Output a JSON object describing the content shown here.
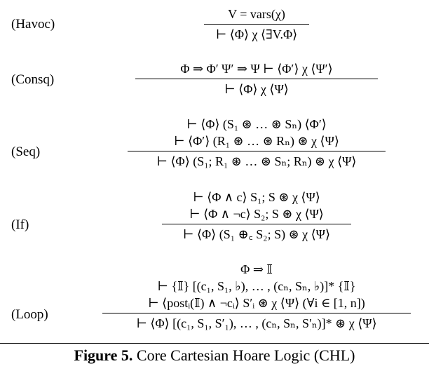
{
  "rules": [
    {
      "name": "(Havoc)",
      "premises": [
        "V = vars(χ)"
      ],
      "conclusion": "⊢ ⟨Φ⟩ χ ⟨∃V.Φ⟩"
    },
    {
      "name": "(Consq)",
      "premises": [
        "Φ ⇒ Φ′    Ψ′ ⇒ Ψ    ⊢ ⟨Φ′⟩ χ ⟨Ψ′⟩"
      ],
      "conclusion": "⊢ ⟨Φ⟩ χ ⟨Ψ⟩"
    },
    {
      "name": "(Seq)",
      "premises": [
        "⊢ ⟨Φ⟩ (S₁ ⊛ … ⊛ Sₙ) ⟨Φ′⟩",
        "⊢ ⟨Φ′⟩ (R₁ ⊛ … ⊛ Rₙ) ⊛ χ ⟨Ψ⟩"
      ],
      "conclusion": "⊢ ⟨Φ⟩ (S₁; R₁ ⊛ … ⊛ Sₙ; Rₙ) ⊛ χ ⟨Ψ⟩"
    },
    {
      "name": "(If)",
      "premises": [
        "⊢  ⟨Φ ∧ c⟩ S₁; S ⊛ χ ⟨Ψ⟩",
        "⊢  ⟨Φ ∧ ¬c⟩ S₂; S ⊛ χ ⟨Ψ⟩"
      ],
      "conclusion": "⊢  ⟨Φ⟩ (S₁ ⊕꜀ S₂; S) ⊛ χ ⟨Ψ⟩"
    },
    {
      "name": "(Loop)",
      "premises": [
        "Φ ⇒ 𝕀",
        "⊢ {𝕀} [(c₁, S₁, ♭), … , (cₙ, Sₙ, ♭)]* {𝕀}",
        "⊢  ⟨postᵢ(𝕀) ∧ ¬cᵢ⟩ S′ᵢ ⊛ χ ⟨Ψ⟩   (∀i ∈ [1, n])"
      ],
      "conclusion": "⊢  ⟨Φ⟩ [(c₁, S₁, S′₁), … , (cₙ, Sₙ, S′ₙ)]* ⊛ χ ⟨Ψ⟩"
    }
  ],
  "caption": {
    "label": "Figure 5.",
    "text": "Core Cartesian Hoare Logic (CHL)"
  }
}
